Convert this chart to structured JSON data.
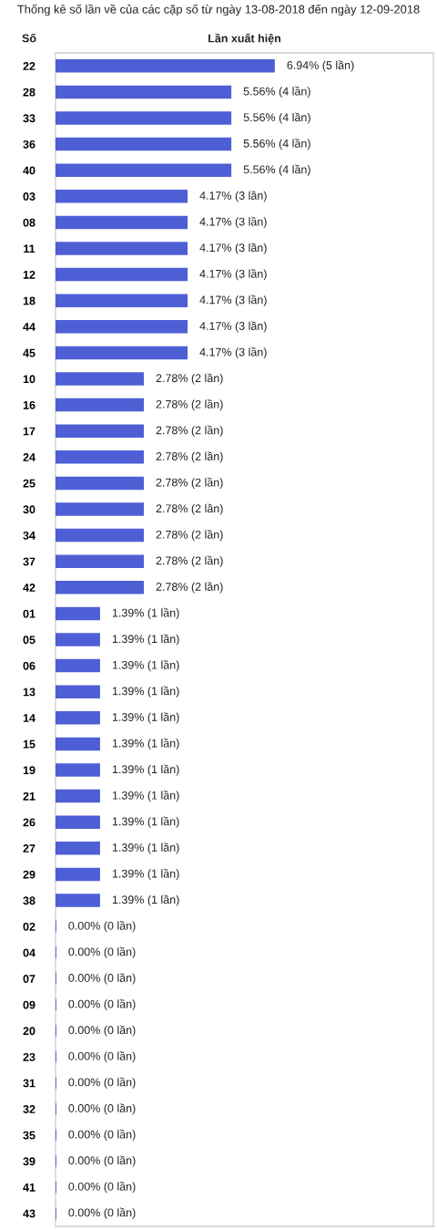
{
  "chart_data": {
    "type": "bar",
    "orientation": "horizontal",
    "title": "Thống kê số lần về của các cặp số từ ngày 13-08-2018 đến ngày 12-09-2018",
    "ylabel": "Số",
    "xlabel": "Lần xuất hiện",
    "categories": [
      "22",
      "28",
      "33",
      "36",
      "40",
      "03",
      "08",
      "11",
      "12",
      "18",
      "44",
      "45",
      "10",
      "16",
      "17",
      "24",
      "25",
      "30",
      "34",
      "37",
      "42",
      "01",
      "05",
      "06",
      "13",
      "14",
      "15",
      "19",
      "21",
      "26",
      "27",
      "29",
      "38",
      "02",
      "04",
      "07",
      "09",
      "20",
      "23",
      "31",
      "32",
      "35",
      "39",
      "41",
      "43"
    ],
    "values": [
      6.94,
      5.56,
      5.56,
      5.56,
      5.56,
      4.17,
      4.17,
      4.17,
      4.17,
      4.17,
      4.17,
      4.17,
      2.78,
      2.78,
      2.78,
      2.78,
      2.78,
      2.78,
      2.78,
      2.78,
      2.78,
      1.39,
      1.39,
      1.39,
      1.39,
      1.39,
      1.39,
      1.39,
      1.39,
      1.39,
      1.39,
      1.39,
      1.39,
      0,
      0,
      0,
      0,
      0,
      0,
      0,
      0,
      0,
      0,
      0,
      0
    ],
    "value_labels": [
      "6.94% (5 lần)",
      "5.56% (4 lần)",
      "5.56% (4 lần)",
      "5.56% (4 lần)",
      "5.56% (4 lần)",
      "4.17% (3 lần)",
      "4.17% (3 lần)",
      "4.17% (3 lần)",
      "4.17% (3 lần)",
      "4.17% (3 lần)",
      "4.17% (3 lần)",
      "4.17% (3 lần)",
      "2.78% (2 lần)",
      "2.78% (2 lần)",
      "2.78% (2 lần)",
      "2.78% (2 lần)",
      "2.78% (2 lần)",
      "2.78% (2 lần)",
      "2.78% (2 lần)",
      "2.78% (2 lần)",
      "2.78% (2 lần)",
      "1.39% (1 lần)",
      "1.39% (1 lần)",
      "1.39% (1 lần)",
      "1.39% (1 lần)",
      "1.39% (1 lần)",
      "1.39% (1 lần)",
      "1.39% (1 lần)",
      "1.39% (1 lần)",
      "1.39% (1 lần)",
      "1.39% (1 lần)",
      "1.39% (1 lần)",
      "1.39% (1 lần)",
      "0.00% (0 lần)",
      "0.00% (0 lần)",
      "0.00% (0 lần)",
      "0.00% (0 lần)",
      "0.00% (0 lần)",
      "0.00% (0 lần)",
      "0.00% (0 lần)",
      "0.00% (0 lần)",
      "0.00% (0 lần)",
      "0.00% (0 lần)",
      "0.00% (0 lần)",
      "0.00% (0 lần)"
    ],
    "color": "#4e5fd6",
    "tick_labels": "y"
  }
}
